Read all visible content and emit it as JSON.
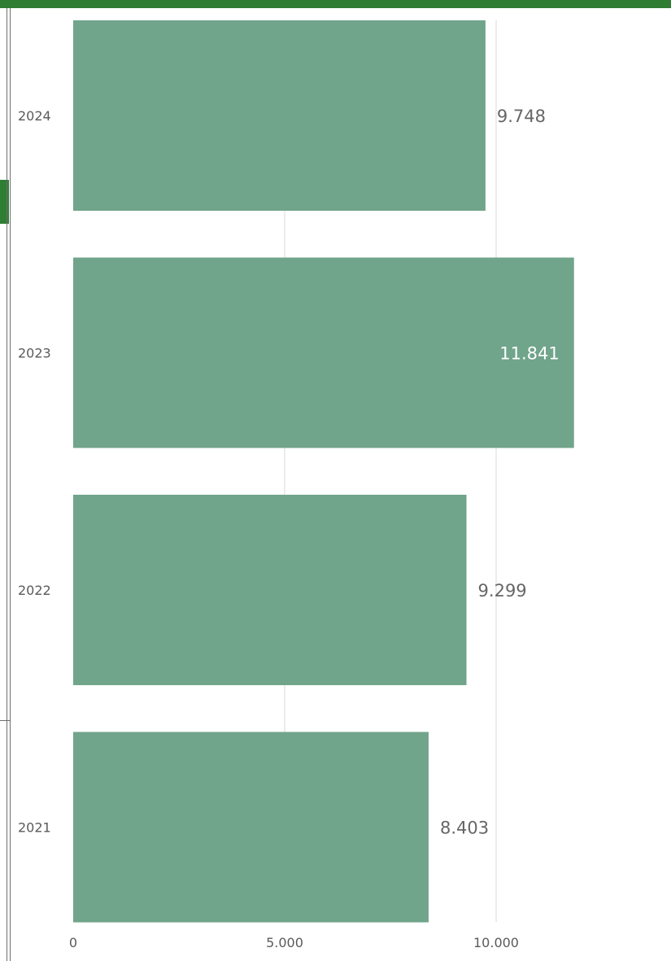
{
  "colors": {
    "header_green": "#2e7d32",
    "bar": "#70a48b",
    "grid": "#e6e6e6",
    "text": "#5a5a5a",
    "label_inside": "#ffffff",
    "label_outside": "#666666"
  },
  "chart_data": {
    "type": "bar",
    "orientation": "horizontal",
    "categories": [
      "2024",
      "2023",
      "2022",
      "2021"
    ],
    "values": [
      9748,
      11841,
      9299,
      8403
    ],
    "data_labels": [
      "9.748",
      "11.841",
      "9.299",
      "8.403"
    ],
    "x_ticks": [
      0,
      5000,
      10000
    ],
    "x_tick_labels": [
      "0",
      "5.000",
      "10.000"
    ],
    "xlim": [
      0,
      11841
    ],
    "grid": true,
    "legend": "none"
  }
}
